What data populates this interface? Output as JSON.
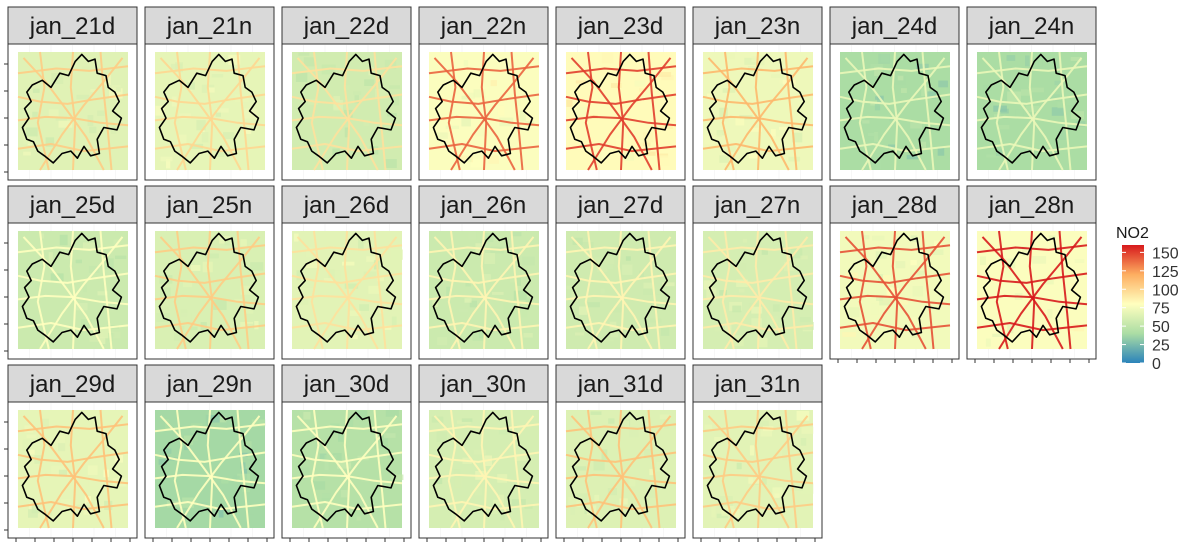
{
  "chart_data": {
    "type": "heatmap",
    "title": "",
    "xlabel": "",
    "ylabel": "",
    "facet_layout": {
      "columns": 8,
      "rows": 3
    },
    "panels": [
      {
        "label": "jan_21d",
        "level": 65,
        "road_level": 105
      },
      {
        "label": "jan_21n",
        "level": 68,
        "road_level": 100
      },
      {
        "label": "jan_22d",
        "level": 58,
        "road_level": 95
      },
      {
        "label": "jan_22n",
        "level": 78,
        "road_level": 140
      },
      {
        "label": "jan_23d",
        "level": 82,
        "road_level": 150
      },
      {
        "label": "jan_23n",
        "level": 72,
        "road_level": 115
      },
      {
        "label": "jan_24d",
        "level": 40,
        "road_level": 70
      },
      {
        "label": "jan_24n",
        "level": 40,
        "road_level": 70
      },
      {
        "label": "jan_25d",
        "level": 55,
        "road_level": 80
      },
      {
        "label": "jan_25n",
        "level": 62,
        "road_level": 105
      },
      {
        "label": "jan_26d",
        "level": 66,
        "road_level": 95
      },
      {
        "label": "jan_26n",
        "level": 55,
        "road_level": 85
      },
      {
        "label": "jan_27d",
        "level": 57,
        "road_level": 85
      },
      {
        "label": "jan_27n",
        "level": 60,
        "road_level": 90
      },
      {
        "label": "jan_28d",
        "level": 74,
        "road_level": 145
      },
      {
        "label": "jan_28n",
        "level": 78,
        "road_level": 160
      },
      {
        "label": "jan_29d",
        "level": 68,
        "road_level": 110
      },
      {
        "label": "jan_29n",
        "level": 38,
        "road_level": 80
      },
      {
        "label": "jan_30d",
        "level": 45,
        "road_level": 80
      },
      {
        "label": "jan_30n",
        "level": 60,
        "road_level": 85
      },
      {
        "label": "jan_31d",
        "level": 64,
        "road_level": 110
      },
      {
        "label": "jan_31n",
        "level": 66,
        "road_level": 105
      }
    ],
    "legend": {
      "title": "NO2",
      "ticks": [
        "150",
        "125",
        "100",
        "75",
        "50",
        "25",
        "0"
      ],
      "range": [
        0,
        160
      ],
      "placement": "right",
      "palette": [
        "#2b83ba",
        "#abdda4",
        "#ffffbf",
        "#fdae61",
        "#d7191c"
      ]
    }
  }
}
